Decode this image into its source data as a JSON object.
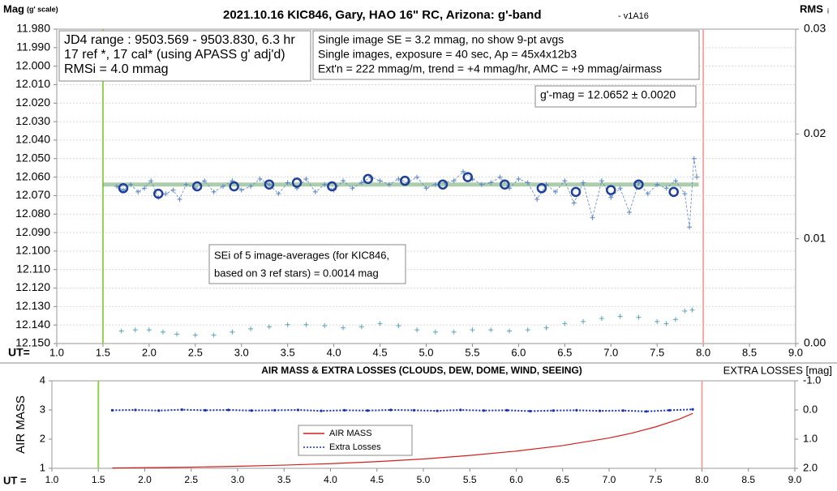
{
  "chart_data": [
    {
      "type": "scatter",
      "title": "2021.10.16 KIC846, Gary, HAO 16\" RC, Arizona: g'-band",
      "subtitle": "- v1A16",
      "ylabel": "Mag",
      "ylabel_note": "(g' scale)",
      "y2label": "RMS",
      "y2label_note": "i",
      "xlabel": "UT=",
      "xlim": [
        1.0,
        9.0
      ],
      "xticks": [
        {
          "value": 1.0,
          "label": "1.0"
        },
        {
          "value": 1.5,
          "label": "1.5"
        },
        {
          "value": 2.0,
          "label": "2.0"
        },
        {
          "value": 2.5,
          "label": "2.5"
        },
        {
          "value": 3.0,
          "label": "3.0"
        },
        {
          "value": 3.5,
          "label": "3.5"
        },
        {
          "value": 4.0,
          "label": "4.0"
        },
        {
          "value": 4.5,
          "label": "4.5"
        },
        {
          "value": 5.0,
          "label": "5.0"
        },
        {
          "value": 5.5,
          "label": "5.5"
        },
        {
          "value": 6.0,
          "label": "6.0"
        },
        {
          "value": 6.5,
          "label": "6.5"
        },
        {
          "value": 7.0,
          "label": "7.0"
        },
        {
          "value": 7.5,
          "label": "7.5"
        },
        {
          "value": 8.0,
          "label": "8.0"
        },
        {
          "value": 8.5,
          "label": "8.5"
        },
        {
          "value": 9.0,
          "label": "9.0"
        }
      ],
      "ylim": [
        11.98,
        12.15
      ],
      "y_inverted": true,
      "yticks": [
        {
          "value": 11.98,
          "label": "11.980"
        },
        {
          "value": 11.99,
          "label": "11.990"
        },
        {
          "value": 12.0,
          "label": "12.000"
        },
        {
          "value": 12.01,
          "label": "12.010"
        },
        {
          "value": 12.02,
          "label": "12.020"
        },
        {
          "value": 12.03,
          "label": "12.030"
        },
        {
          "value": 12.04,
          "label": "12.040"
        },
        {
          "value": 12.05,
          "label": "12.050"
        },
        {
          "value": 12.06,
          "label": "12.060"
        },
        {
          "value": 12.07,
          "label": "12.070"
        },
        {
          "value": 12.08,
          "label": "12.080"
        },
        {
          "value": 12.09,
          "label": "12.090"
        },
        {
          "value": 12.1,
          "label": "12.100"
        },
        {
          "value": 12.11,
          "label": "12.110"
        },
        {
          "value": 12.12,
          "label": "12.120"
        },
        {
          "value": 12.13,
          "label": "12.130"
        },
        {
          "value": 12.14,
          "label": "12.140"
        },
        {
          "value": 12.15,
          "label": "12.150"
        }
      ],
      "y2lim": [
        0,
        0.03
      ],
      "y2ticks": [
        {
          "value": 0.03,
          "label": "0.03"
        },
        {
          "value": 0.02,
          "label": "0.02"
        },
        {
          "value": 0.01,
          "label": "0.01"
        },
        {
          "value": 0,
          "label": "0.00"
        }
      ],
      "grid": true,
      "vlines": [
        {
          "value": 1.5,
          "color": "#92d050"
        },
        {
          "value": 8.0,
          "color": "#f4a6a6"
        }
      ],
      "hlines": [
        {
          "value": 12.064,
          "x": [
            1.5,
            7.95
          ],
          "color": "#6aa66a"
        }
      ],
      "series": [
        {
          "color": "#5b86c6",
          "marker": "plus",
          "line": "dashed",
          "x": [
            1.65,
            1.72,
            1.8,
            1.88,
            1.95,
            2.02,
            2.1,
            2.18,
            2.26,
            2.33,
            2.4,
            2.5,
            2.6,
            2.7,
            2.8,
            2.9,
            3.0,
            3.1,
            3.2,
            3.3,
            3.4,
            3.5,
            3.6,
            3.7,
            3.8,
            3.9,
            4.0,
            4.1,
            4.2,
            4.3,
            4.4,
            4.5,
            4.6,
            4.7,
            4.8,
            4.9,
            5.0,
            5.1,
            5.2,
            5.3,
            5.4,
            5.5,
            5.6,
            5.7,
            5.8,
            5.9,
            6.0,
            6.1,
            6.2,
            6.3,
            6.4,
            6.5,
            6.6,
            6.7,
            6.8,
            6.9,
            7.0,
            7.1,
            7.2,
            7.3,
            7.4,
            7.5,
            7.6,
            7.7,
            7.8,
            7.85,
            7.9,
            7.93
          ],
          "values": [
            12.065,
            12.067,
            12.064,
            12.068,
            12.066,
            12.062,
            12.071,
            12.069,
            12.067,
            12.072,
            12.064,
            12.066,
            12.062,
            12.068,
            12.065,
            12.062,
            12.067,
            12.065,
            12.061,
            12.064,
            12.069,
            12.063,
            12.066,
            12.061,
            12.068,
            12.064,
            12.067,
            12.062,
            12.066,
            12.063,
            12.06,
            12.062,
            12.064,
            12.061,
            12.063,
            12.06,
            12.066,
            12.064,
            12.063,
            12.062,
            12.057,
            12.061,
            12.064,
            12.063,
            12.06,
            12.066,
            12.061,
            12.063,
            12.072,
            12.064,
            12.068,
            12.062,
            12.074,
            12.063,
            12.082,
            12.062,
            12.071,
            12.066,
            12.079,
            12.063,
            12.069,
            12.064,
            12.066,
            12.062,
            12.069,
            12.087,
            12.05,
            12.06
          ]
        },
        {
          "color": "#1f3f9a",
          "marker": "circle",
          "line": "none",
          "x": [
            1.72,
            2.1,
            2.52,
            2.92,
            3.3,
            3.6,
            3.98,
            4.37,
            4.77,
            5.18,
            5.45,
            5.85,
            6.25,
            6.62,
            7.0,
            7.3,
            7.68
          ],
          "values": [
            12.066,
            12.069,
            12.065,
            12.065,
            12.064,
            12.063,
            12.065,
            12.061,
            12.062,
            12.064,
            12.06,
            12.064,
            12.066,
            12.068,
            12.067,
            12.064,
            12.068
          ]
        },
        {
          "color": "#5fa4b8",
          "marker": "plus",
          "line": "none",
          "axis": "y2",
          "x": [
            1.7,
            1.85,
            2.0,
            2.15,
            2.3,
            2.5,
            2.7,
            2.9,
            3.1,
            3.3,
            3.5,
            3.7,
            3.9,
            4.1,
            4.3,
            4.5,
            4.7,
            4.9,
            5.1,
            5.3,
            5.5,
            5.7,
            5.9,
            6.1,
            6.3,
            6.5,
            6.7,
            6.9,
            7.1,
            7.3,
            7.5,
            7.6,
            7.7,
            7.8,
            7.88
          ],
          "values": [
            0.0012,
            0.0013,
            0.0013,
            0.0011,
            0.0009,
            0.0008,
            0.0008,
            0.0011,
            0.0014,
            0.0016,
            0.0018,
            0.0018,
            0.0017,
            0.0015,
            0.0016,
            0.0019,
            0.0017,
            0.0013,
            0.0011,
            0.0011,
            0.0013,
            0.0013,
            0.0012,
            0.0013,
            0.0015,
            0.0019,
            0.0021,
            0.0024,
            0.0026,
            0.0025,
            0.0021,
            0.0019,
            0.0023,
            0.0031,
            0.0032
          ]
        }
      ],
      "annotations": [
        {
          "lines": [
            "JD4 range : 9503.569 - 9503.830,  6.3  hr",
            "17 ref *, 17 cal* (using APASS g' adj'd)",
            "RMSi = 4.0 mmag"
          ]
        },
        {
          "lines": [
            "Single image SE = 3.2 mmag, no show  9-pt avgs",
            "Single images, exposure = 40 sec, Ap = 45x4x12b3",
            "Ext'n = 222 mmag/m, trend = +4 mmag/hr, AMC = +9 mmag/airmass"
          ]
        },
        {
          "lines": [
            "g'-mag = 12.0652 ± 0.0020"
          ]
        },
        {
          "lines": [
            "SEi of 5 image-averages (for KIC846,",
            "based on 3 ref stars) = 0.0014 mag"
          ]
        }
      ]
    },
    {
      "type": "line",
      "title": "AIR MASS & EXTRA LOSSES (CLOUDS, DEW, DOME, WIND, SEEING)",
      "ylabel": "AIR MASS",
      "y2label": "EXTRA LOSSES [mag]",
      "xlabel": "UT =",
      "xlim": [
        1.0,
        9.0
      ],
      "xticks": [
        {
          "value": 1.0,
          "label": "1.0"
        },
        {
          "value": 1.5,
          "label": "1.5"
        },
        {
          "value": 2.0,
          "label": "2.0"
        },
        {
          "value": 2.5,
          "label": "2.5"
        },
        {
          "value": 3.0,
          "label": "3.0"
        },
        {
          "value": 3.5,
          "label": "3.5"
        },
        {
          "value": 4.0,
          "label": "4.0"
        },
        {
          "value": 4.5,
          "label": "4.5"
        },
        {
          "value": 5.0,
          "label": "5.0"
        },
        {
          "value": 5.5,
          "label": "5.5"
        },
        {
          "value": 6.0,
          "label": "6.0"
        },
        {
          "value": 6.5,
          "label": "6.5"
        },
        {
          "value": 7.0,
          "label": "7.0"
        },
        {
          "value": 7.5,
          "label": "7.5"
        },
        {
          "value": 8.0,
          "label": "8.0"
        },
        {
          "value": 8.5,
          "label": "8.5"
        },
        {
          "value": 9.0,
          "label": "9.0"
        }
      ],
      "ylim": [
        1,
        4
      ],
      "yticks": [
        1,
        2,
        3,
        4
      ],
      "y2lim": [
        -1.0,
        2.0
      ],
      "y2_inverted": true,
      "y2ticks": [
        {
          "value": -1.0,
          "label": "-1.0"
        },
        {
          "value": 0,
          "label": "0.0"
        },
        {
          "value": 1.0,
          "label": "1.0"
        },
        {
          "value": 2.0,
          "label": "2.0"
        }
      ],
      "grid": false,
      "legend": "bottom-center",
      "vlines": [
        {
          "value": 1.5,
          "color": "#92d050"
        },
        {
          "value": 8.0,
          "color": "#f4a6a6"
        }
      ],
      "series": [
        {
          "name": "AIR MASS",
          "color": "#d02020",
          "marker": "none",
          "line": "solid",
          "x": [
            1.65,
            2.0,
            2.5,
            3.0,
            3.5,
            4.0,
            4.5,
            5.0,
            5.5,
            6.0,
            6.5,
            7.0,
            7.25,
            7.5,
            7.75,
            7.9
          ],
          "values": [
            1.01,
            1.02,
            1.04,
            1.07,
            1.11,
            1.16,
            1.23,
            1.32,
            1.44,
            1.59,
            1.78,
            2.04,
            2.21,
            2.42,
            2.68,
            2.88
          ]
        },
        {
          "name": "Extra Losses",
          "color": "#1a30b0",
          "marker": "dot",
          "line": "dotted",
          "axis": "y2",
          "x": [
            1.65,
            1.9,
            2.15,
            2.4,
            2.65,
            2.9,
            3.15,
            3.4,
            3.65,
            3.9,
            4.15,
            4.4,
            4.65,
            4.9,
            5.15,
            5.4,
            5.65,
            5.9,
            6.15,
            6.4,
            6.65,
            6.9,
            7.15,
            7.4,
            7.65,
            7.9
          ],
          "values": [
            0.01,
            0.0,
            0.02,
            -0.01,
            0.01,
            0.0,
            0.02,
            0.01,
            0.0,
            0.03,
            0.01,
            0.02,
            0.0,
            0.01,
            0.03,
            0.0,
            0.02,
            0.01,
            0.04,
            0.02,
            0.01,
            0.03,
            0.02,
            0.05,
            0.01,
            -0.02
          ]
        }
      ]
    }
  ]
}
